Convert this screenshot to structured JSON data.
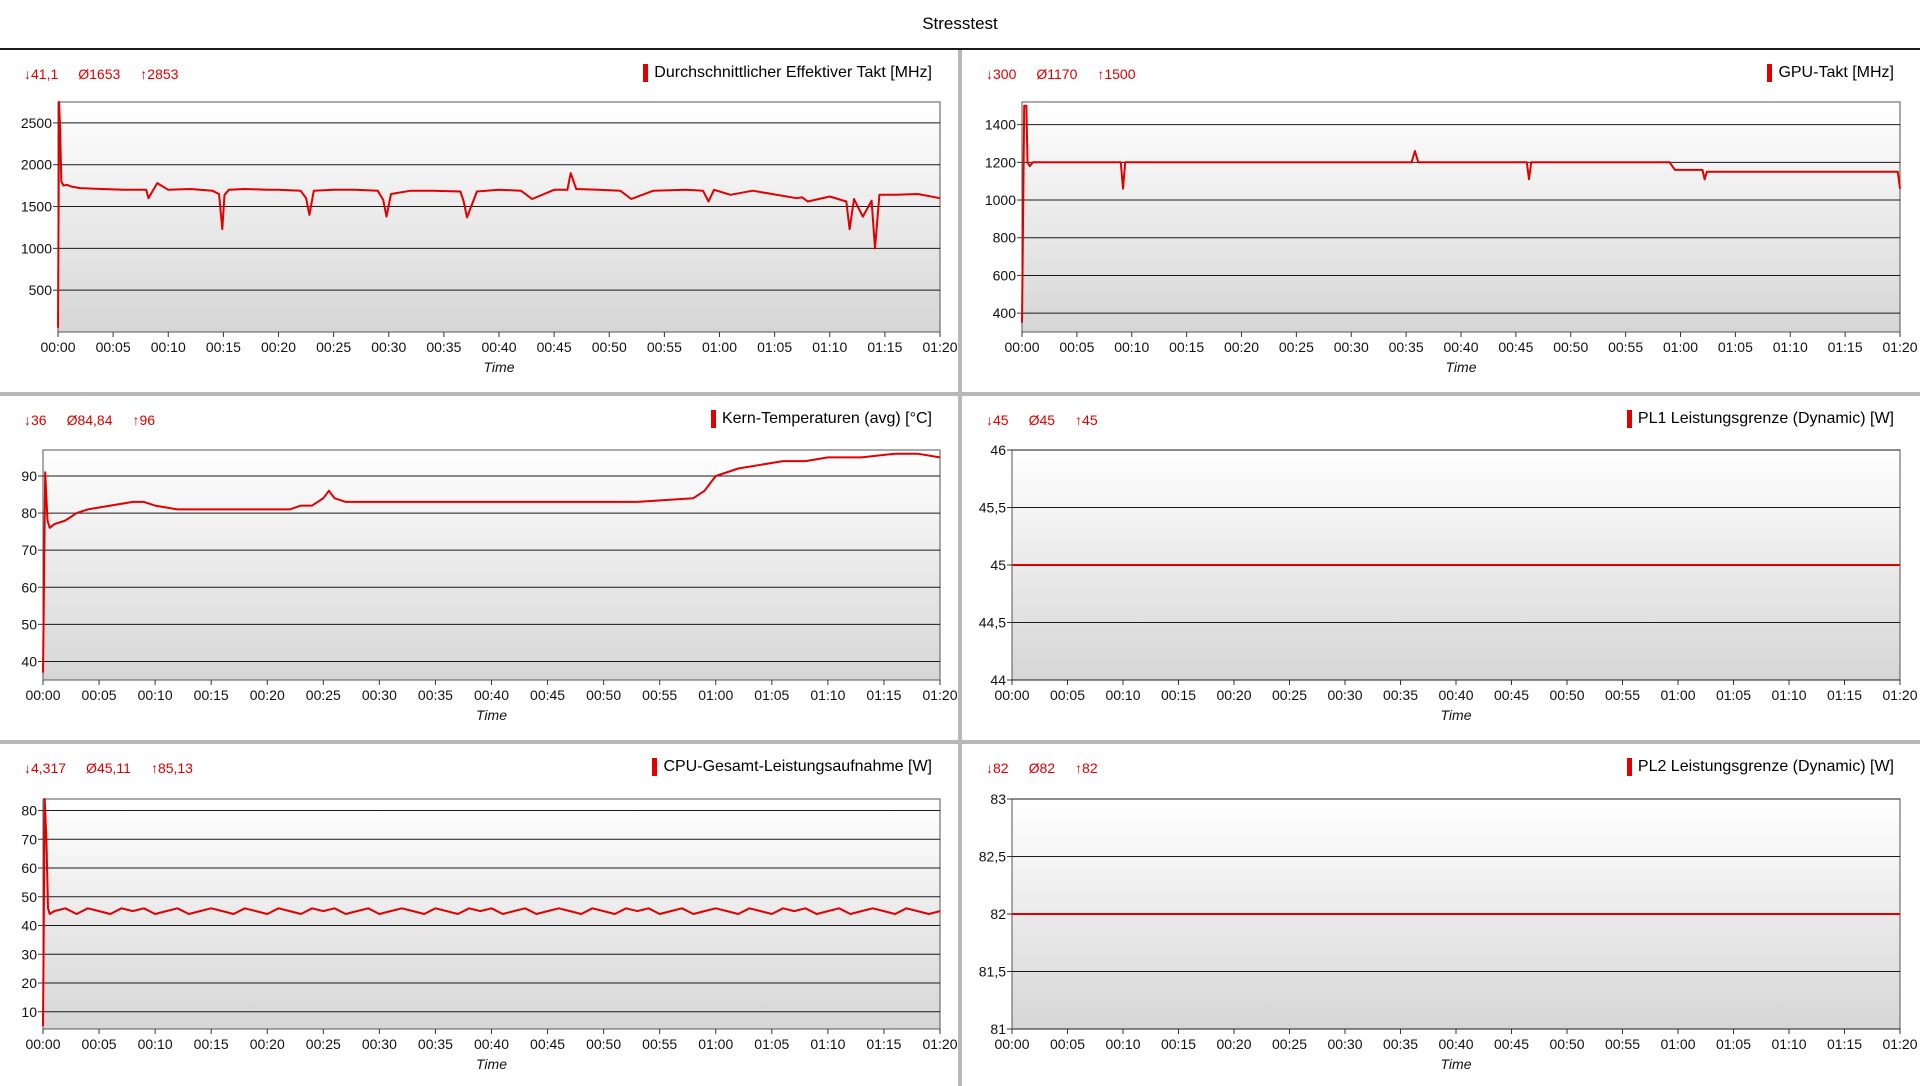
{
  "window": {
    "title": "Stresstest"
  },
  "x_axis": {
    "ticks": [
      "00:00",
      "00:05",
      "00:10",
      "00:15",
      "00:20",
      "00:25",
      "00:30",
      "00:35",
      "00:40",
      "00:45",
      "00:50",
      "00:55",
      "01:00",
      "01:05",
      "01:10",
      "01:15",
      "01:20"
    ],
    "label": "Time"
  },
  "colors": {
    "series": "#e00000",
    "fill_top": "#ffffff",
    "fill_bottom": "#d6d6d6",
    "grid": "#1a1a1a"
  },
  "chart_data": [
    {
      "type": "line",
      "title": "Durchschnittlicher Effektiver Takt [MHz]",
      "stats": {
        "min": "41,1",
        "avg": "1653",
        "max": "2853"
      },
      "xlabel": "Time",
      "xlim": [
        0,
        80
      ],
      "ylim": [
        0,
        2750
      ],
      "yticks": [
        500,
        1000,
        1500,
        2000,
        2500
      ],
      "ytick_labels": [
        "500",
        "1000",
        "1500",
        "2000",
        "2500"
      ],
      "series": [
        {
          "x": [
            0,
            0.1,
            0.2,
            0.3,
            0.5,
            0.8,
            1.2,
            2,
            4,
            6,
            8,
            8.2,
            9,
            10,
            12,
            14,
            14.6,
            14.9,
            15.1,
            15.5,
            17,
            19,
            20,
            22,
            22.5,
            22.8,
            23.2,
            25,
            27,
            29,
            29.5,
            29.8,
            30.2,
            32,
            34,
            36.5,
            36.8,
            37.1,
            38,
            40,
            42,
            43,
            45,
            46.2,
            46.5,
            47,
            49,
            51,
            52,
            54,
            57,
            58.5,
            59,
            59.5,
            61,
            63,
            67,
            67.5,
            68,
            70,
            71.5,
            71.8,
            72.2,
            73,
            73.8,
            74.1,
            74.5,
            76,
            78,
            80
          ],
          "y": [
            50,
            2750,
            2400,
            1800,
            1750,
            1760,
            1740,
            1720,
            1710,
            1700,
            1700,
            1600,
            1780,
            1700,
            1710,
            1690,
            1650,
            1230,
            1640,
            1700,
            1710,
            1700,
            1700,
            1690,
            1600,
            1400,
            1690,
            1700,
            1700,
            1690,
            1580,
            1380,
            1650,
            1690,
            1690,
            1680,
            1560,
            1370,
            1680,
            1700,
            1690,
            1590,
            1700,
            1700,
            1900,
            1710,
            1700,
            1690,
            1590,
            1690,
            1700,
            1690,
            1560,
            1700,
            1640,
            1690,
            1600,
            1610,
            1560,
            1620,
            1560,
            1230,
            1590,
            1380,
            1570,
            1000,
            1640,
            1640,
            1650,
            1600
          ]
        }
      ]
    },
    {
      "type": "line",
      "title": "GPU-Takt [MHz]",
      "stats": {
        "min": "300",
        "avg": "1170",
        "max": "1500"
      },
      "xlabel": "Time",
      "xlim": [
        0,
        80
      ],
      "ylim": [
        300,
        1520
      ],
      "yticks": [
        400,
        600,
        800,
        1000,
        1200,
        1400
      ],
      "ytick_labels": [
        "400",
        "600",
        "800",
        "1000",
        "1200",
        "1400"
      ],
      "series": [
        {
          "x": [
            0,
            0.2,
            0.4,
            0.5,
            0.7,
            1.0,
            5,
            9,
            9.2,
            9.4,
            10,
            20,
            30,
            35.5,
            35.8,
            36.1,
            45,
            46,
            46.2,
            46.4,
            59,
            59.5,
            62,
            62.2,
            62.4,
            70,
            79.8,
            80
          ],
          "y": [
            350,
            1500,
            1500,
            1200,
            1180,
            1200,
            1200,
            1200,
            1060,
            1200,
            1200,
            1200,
            1200,
            1200,
            1260,
            1200,
            1200,
            1200,
            1110,
            1200,
            1200,
            1160,
            1160,
            1110,
            1150,
            1150,
            1150,
            1060
          ]
        }
      ]
    },
    {
      "type": "line",
      "title": "Kern-Temperaturen (avg) [°C]",
      "stats": {
        "min": "36",
        "avg": "84,84",
        "max": "96"
      },
      "xlabel": "Time",
      "xlim": [
        0,
        80
      ],
      "ylim": [
        35,
        97
      ],
      "yticks": [
        40,
        50,
        60,
        70,
        80,
        90
      ],
      "ytick_labels": [
        "40",
        "50",
        "60",
        "70",
        "80",
        "90"
      ],
      "series": [
        {
          "x": [
            0,
            0.2,
            0.4,
            0.6,
            1,
            2,
            3,
            4,
            6,
            8,
            9,
            10,
            12,
            16,
            20,
            22,
            23,
            24,
            25,
            25.5,
            26,
            27,
            30,
            36,
            40,
            44,
            48,
            50,
            53,
            58,
            59,
            59.5,
            60,
            62,
            64,
            66,
            68,
            70,
            73,
            76,
            78,
            80
          ],
          "y": [
            37,
            91,
            78,
            76,
            77,
            78,
            80,
            81,
            82,
            83,
            83,
            82,
            81,
            81,
            81,
            81,
            82,
            82,
            84,
            86,
            84,
            83,
            83,
            83,
            83,
            83,
            83,
            83,
            83,
            84,
            86,
            88,
            90,
            92,
            93,
            94,
            94,
            95,
            95,
            96,
            96,
            95
          ]
        }
      ]
    },
    {
      "type": "line",
      "title": "PL1 Leistungsgrenze (Dynamic) [W]",
      "stats": {
        "min": "45",
        "avg": "45",
        "max": "45"
      },
      "xlabel": "Time",
      "xlim": [
        0,
        80
      ],
      "ylim": [
        44,
        46
      ],
      "yticks": [
        44,
        44.5,
        45,
        45.5,
        46
      ],
      "ytick_labels": [
        "44",
        "44,5",
        "45",
        "45,5",
        "46"
      ],
      "series": [
        {
          "x": [
            0,
            80
          ],
          "y": [
            45,
            45
          ]
        }
      ]
    },
    {
      "type": "line",
      "title": "CPU-Gesamt-Leistungsaufnahme [W]",
      "stats": {
        "min": "4,317",
        "avg": "45,11",
        "max": "85,13"
      },
      "xlabel": "Time",
      "xlim": [
        0,
        80
      ],
      "ylim": [
        4,
        84
      ],
      "yticks": [
        10,
        20,
        30,
        40,
        50,
        60,
        70,
        80
      ],
      "ytick_labels": [
        "10",
        "20",
        "30",
        "40",
        "50",
        "60",
        "70",
        "80"
      ],
      "series": [
        {
          "x": [
            0,
            0.15,
            0.3,
            0.45,
            0.6,
            1,
            2,
            3,
            4,
            5,
            6,
            7,
            8,
            9,
            10,
            11,
            12,
            13,
            14,
            15,
            16,
            17,
            18,
            19,
            20,
            21,
            22,
            23,
            24,
            25,
            26,
            27,
            28,
            29,
            30,
            31,
            32,
            33,
            34,
            35,
            36,
            37,
            38,
            39,
            40,
            41,
            42,
            43,
            44,
            45,
            46,
            47,
            48,
            49,
            50,
            51,
            52,
            53,
            54,
            55,
            56,
            57,
            58,
            59,
            60,
            61,
            62,
            63,
            64,
            65,
            66,
            67,
            68,
            69,
            70,
            71,
            72,
            73,
            74,
            75,
            76,
            77,
            78,
            79,
            80
          ],
          "y": [
            5,
            84,
            70,
            46,
            44,
            45,
            46,
            44,
            46,
            45,
            44,
            46,
            45,
            46,
            44,
            45,
            46,
            44,
            45,
            46,
            45,
            44,
            46,
            45,
            44,
            46,
            45,
            44,
            46,
            45,
            46,
            44,
            45,
            46,
            44,
            45,
            46,
            45,
            44,
            46,
            45,
            44,
            46,
            45,
            46,
            44,
            45,
            46,
            44,
            45,
            46,
            45,
            44,
            46,
            45,
            44,
            46,
            45,
            46,
            44,
            45,
            46,
            44,
            45,
            46,
            45,
            44,
            46,
            45,
            44,
            46,
            45,
            46,
            44,
            45,
            46,
            44,
            45,
            46,
            45,
            44,
            46,
            45,
            44,
            45
          ]
        }
      ]
    },
    {
      "type": "line",
      "title": "PL2 Leistungsgrenze (Dynamic) [W]",
      "stats": {
        "min": "82",
        "avg": "82",
        "max": "82"
      },
      "xlabel": "Time",
      "xlim": [
        0,
        80
      ],
      "ylim": [
        81,
        83
      ],
      "yticks": [
        81,
        81.5,
        82,
        82.5,
        83
      ],
      "ytick_labels": [
        "81",
        "81,5",
        "82",
        "82,5",
        "83"
      ],
      "series": [
        {
          "x": [
            0,
            80
          ],
          "y": [
            82,
            82
          ]
        }
      ]
    }
  ]
}
